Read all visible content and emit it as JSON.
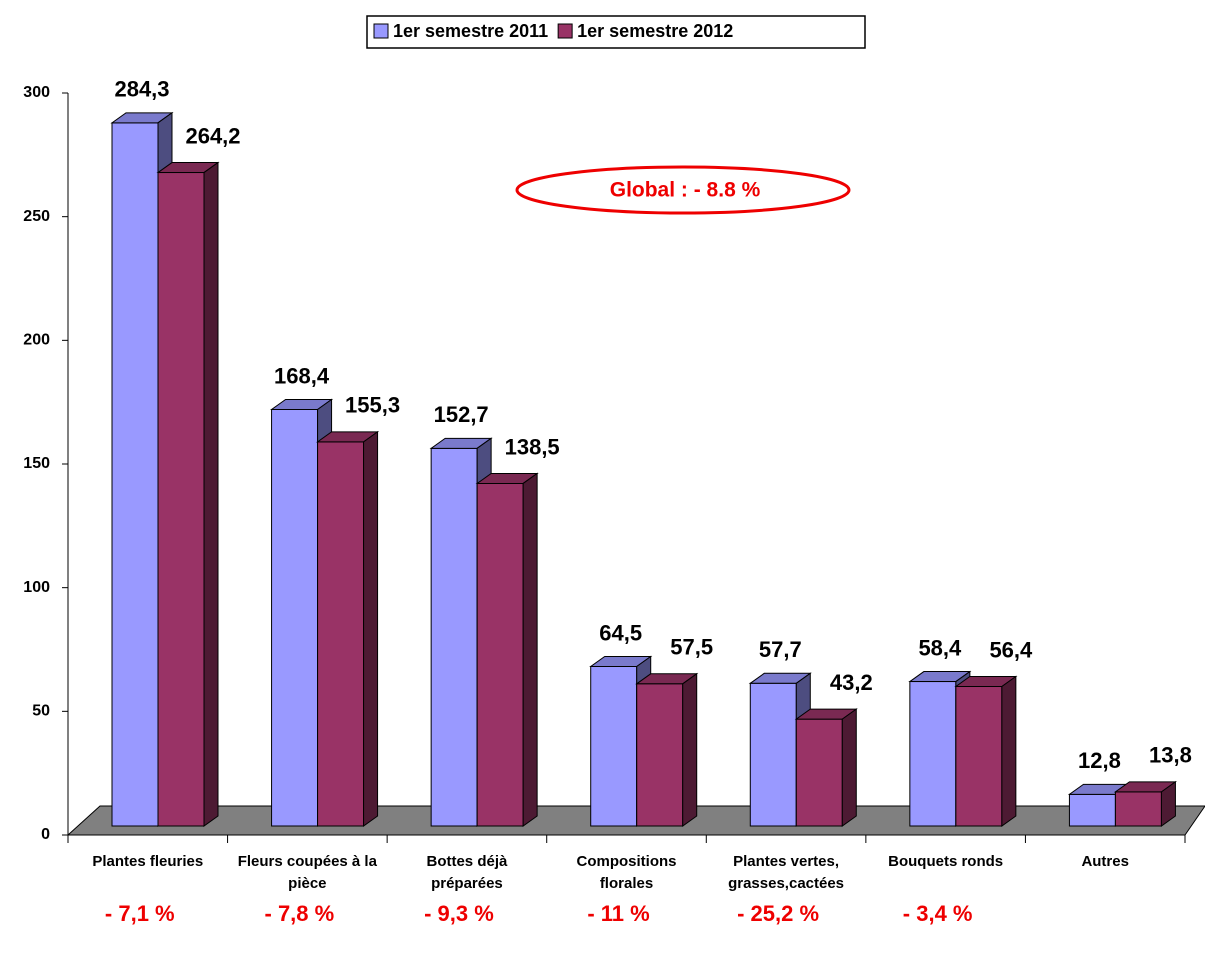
{
  "chart_data": {
    "type": "bar3d",
    "categories": [
      "Plantes fleuries",
      "Fleurs coupées à la pièce",
      "Bottes déjà préparées",
      "Compositions florales",
      "Plantes vertes, grasses,cactées",
      "Bouquets ronds",
      "Autres"
    ],
    "series": [
      {
        "name": "1er semestre 2011",
        "color": "#9999ff",
        "values": [
          284.3,
          168.4,
          152.7,
          64.5,
          57.7,
          58.4,
          12.8
        ],
        "value_labels": [
          "284,3",
          "168,4",
          "152,7",
          "64,5",
          "57,7",
          "58,4",
          "12,8"
        ]
      },
      {
        "name": "1er semestre 2012",
        "color": "#993366",
        "values": [
          264.2,
          155.3,
          138.5,
          57.5,
          43.2,
          56.4,
          13.8
        ],
        "value_labels": [
          "264,2",
          "155,3",
          "138,5",
          "57,5",
          "43,2",
          "56,4",
          "13,8"
        ]
      }
    ],
    "ylim": [
      0,
      300
    ],
    "yticks": [
      0,
      50,
      100,
      150,
      200,
      250,
      300
    ],
    "global": "Global : - 8.8 %",
    "changes": [
      "- 7,1 %",
      "- 7,8 %",
      "- 9,3 %",
      "- 11 %",
      "- 25,2 %",
      "- 3,4 %"
    ],
    "legend": "top"
  }
}
